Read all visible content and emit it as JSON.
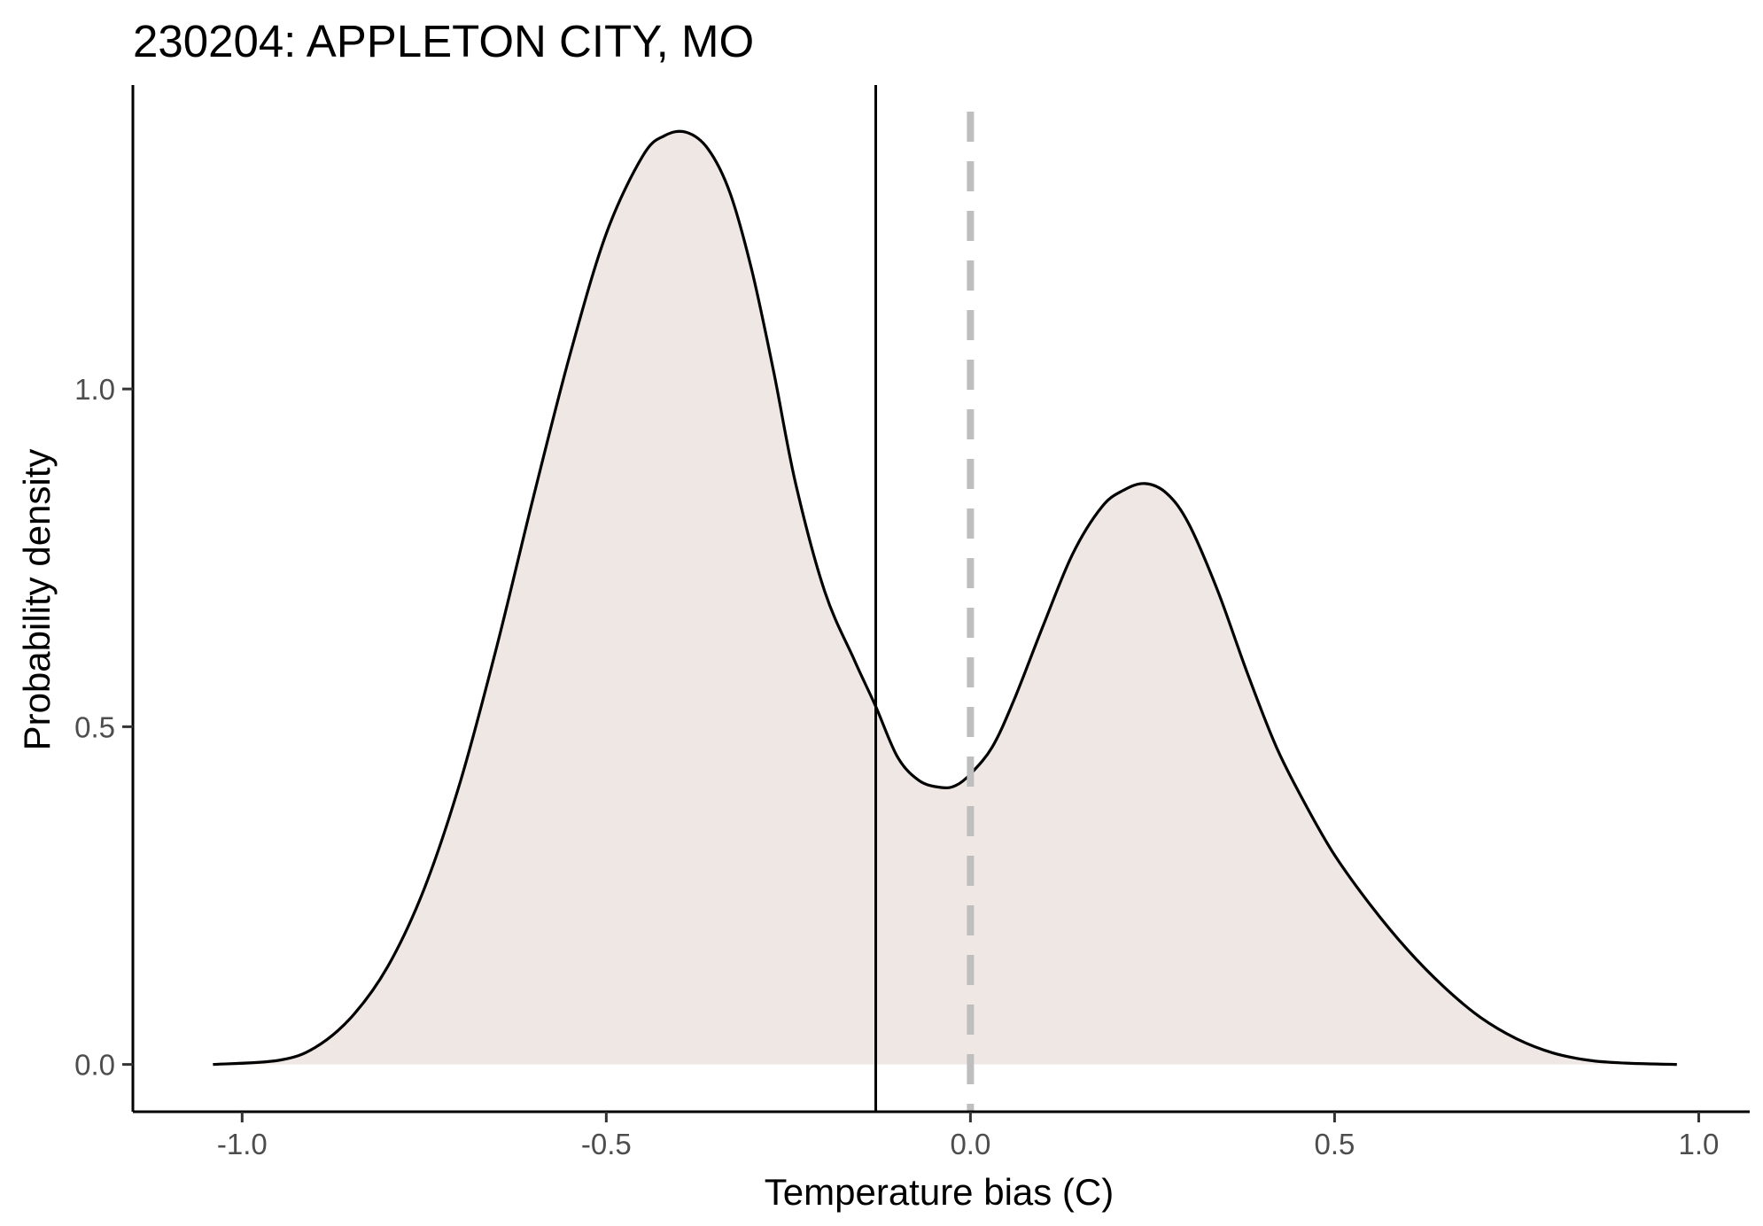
{
  "chart_data": {
    "type": "area",
    "title": "230204: APPLETON CITY, MO",
    "xlabel": "Temperature bias (C)",
    "ylabel": "Probability density",
    "xlim": [
      -1.15,
      1.07
    ],
    "ylim": [
      -0.07,
      1.45
    ],
    "x_ticks": [
      -1.0,
      -0.5,
      0.0,
      0.5,
      1.0
    ],
    "x_tick_labels": [
      "-1.0",
      "-0.5",
      "0.0",
      "0.5",
      "1.0"
    ],
    "y_ticks": [
      0.0,
      0.5,
      1.0
    ],
    "y_tick_labels": [
      "0.0",
      "0.5",
      "1.0"
    ],
    "grid": false,
    "fill_color": "#efe7e4",
    "line_color": "#000000",
    "density": {
      "x": [
        -1.04,
        -0.95,
        -0.9,
        -0.85,
        -0.8,
        -0.75,
        -0.7,
        -0.65,
        -0.6,
        -0.55,
        -0.5,
        -0.45,
        -0.42,
        -0.39,
        -0.36,
        -0.33,
        -0.3,
        -0.27,
        -0.24,
        -0.2,
        -0.16,
        -0.13,
        -0.1,
        -0.07,
        -0.04,
        -0.02,
        0.0,
        0.03,
        0.06,
        0.1,
        0.14,
        0.18,
        0.21,
        0.24,
        0.27,
        0.3,
        0.34,
        0.38,
        0.42,
        0.46,
        0.5,
        0.55,
        0.6,
        0.65,
        0.7,
        0.75,
        0.8,
        0.85,
        0.9,
        0.97
      ],
      "y": [
        0.0,
        0.006,
        0.025,
        0.07,
        0.145,
        0.26,
        0.42,
        0.62,
        0.84,
        1.05,
        1.23,
        1.345,
        1.375,
        1.38,
        1.355,
        1.29,
        1.175,
        1.025,
        0.86,
        0.7,
        0.6,
        0.53,
        0.455,
        0.42,
        0.41,
        0.413,
        0.43,
        0.47,
        0.54,
        0.65,
        0.755,
        0.825,
        0.85,
        0.86,
        0.845,
        0.8,
        0.7,
        0.58,
        0.47,
        0.385,
        0.31,
        0.235,
        0.17,
        0.115,
        0.07,
        0.038,
        0.017,
        0.006,
        0.002,
        0.0
      ]
    },
    "reference_lines": [
      {
        "x": -0.13,
        "style": "solid",
        "color": "#000000"
      },
      {
        "x": 0.0,
        "style": "dashed",
        "color": "#bebebe"
      }
    ]
  }
}
